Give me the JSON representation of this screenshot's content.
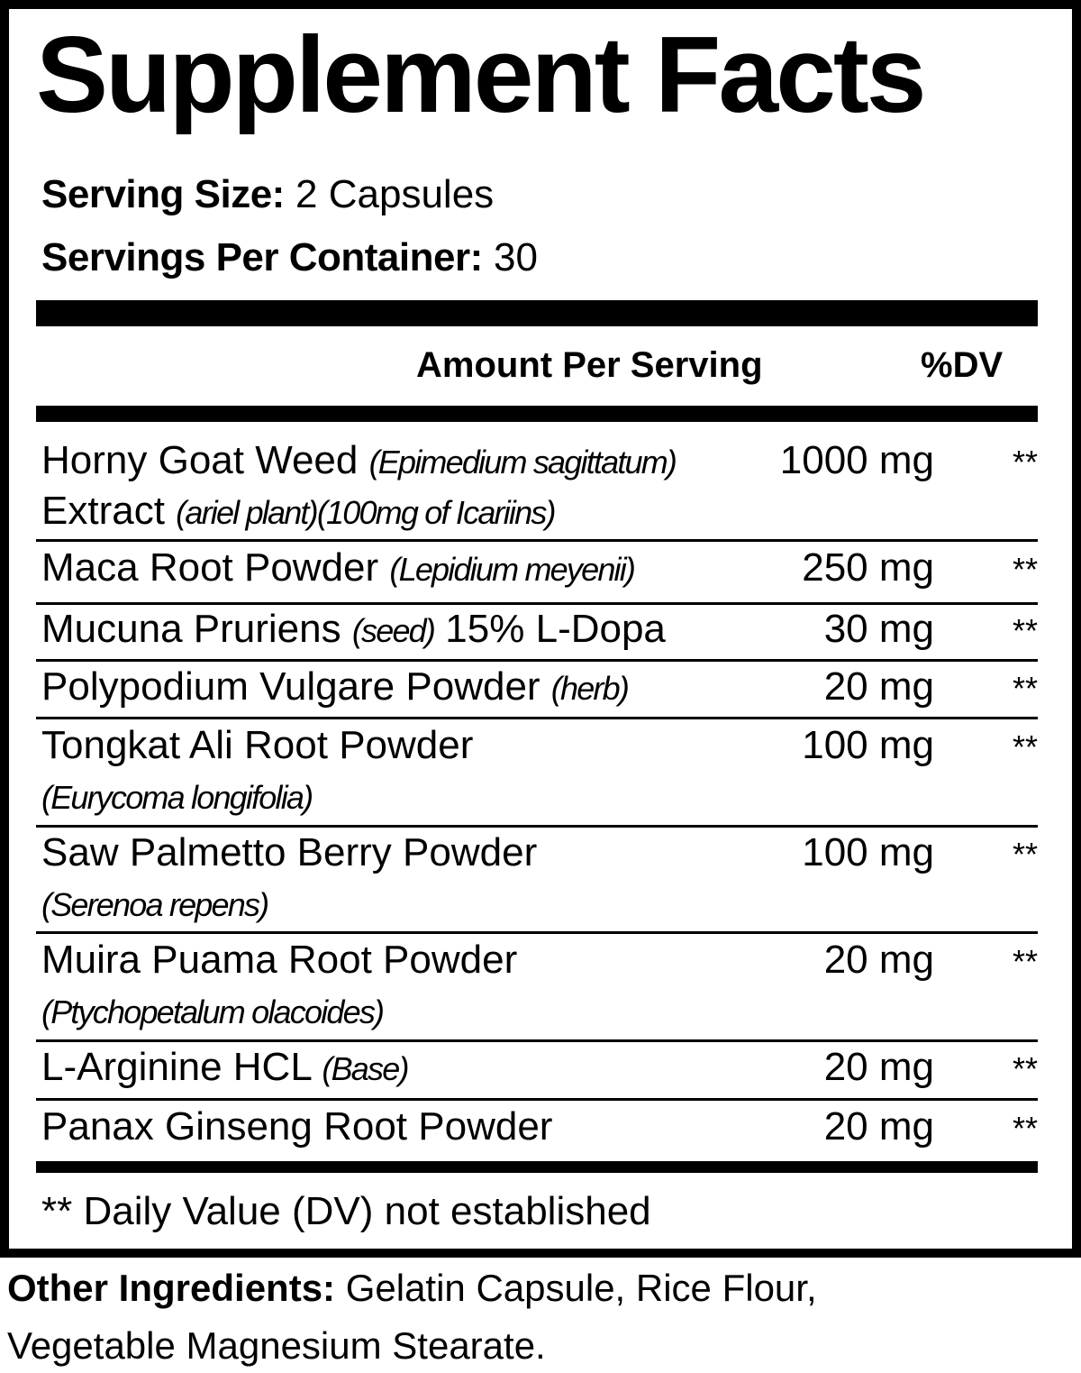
{
  "title": "Supplement Facts",
  "serving_size": {
    "label": "Serving Size:",
    "value": "2 Capsules"
  },
  "servings_per_container": {
    "label": "Servings Per Container:",
    "value": "30"
  },
  "header": {
    "amount": "Amount Per Serving",
    "dv": "%DV"
  },
  "rows": [
    {
      "lines": [
        [
          {
            "t": "Horny Goat Weed ",
            "i": false
          },
          {
            "t": "(Epimedium sagittatum)",
            "i": true
          }
        ],
        [
          {
            "t": "Extract ",
            "i": false
          },
          {
            "t": "(ariel plant)(100mg of Icariins)",
            "i": true
          }
        ]
      ],
      "amount": "1000 mg",
      "dv": "**"
    },
    {
      "lines": [
        [
          {
            "t": "Maca Root Powder ",
            "i": false
          },
          {
            "t": "(Lepidium meyenii)",
            "i": true
          }
        ]
      ],
      "amount": "250 mg",
      "dv": "**"
    },
    {
      "lines": [
        [
          {
            "t": "Mucuna Pruriens ",
            "i": false
          },
          {
            "t": "(seed)",
            "i": true
          },
          {
            "t": " 15% L-Dopa",
            "i": false
          }
        ]
      ],
      "amount": "30 mg",
      "dv": "**"
    },
    {
      "lines": [
        [
          {
            "t": "Polypodium Vulgare Powder ",
            "i": false
          },
          {
            "t": "(herb)",
            "i": true
          }
        ]
      ],
      "amount": "20 mg",
      "dv": "**"
    },
    {
      "lines": [
        [
          {
            "t": "Tongkat Ali Root Powder",
            "i": false
          }
        ],
        [
          {
            "t": "(Eurycoma longifolia)",
            "i": true
          }
        ]
      ],
      "amount": "100 mg",
      "dv": "**"
    },
    {
      "lines": [
        [
          {
            "t": "Saw Palmetto Berry Powder",
            "i": false
          }
        ],
        [
          {
            "t": "(Serenoa repens)",
            "i": true
          }
        ]
      ],
      "amount": "100 mg",
      "dv": "**"
    },
    {
      "lines": [
        [
          {
            "t": "Muira Puama Root Powder",
            "i": false
          }
        ],
        [
          {
            "t": "(Ptychopetalum olacoides)",
            "i": true
          }
        ]
      ],
      "amount": "20 mg",
      "dv": "**"
    },
    {
      "lines": [
        [
          {
            "t": "L-Arginine HCL ",
            "i": false
          },
          {
            "t": "(Base)",
            "i": true
          }
        ]
      ],
      "amount": "20 mg",
      "dv": "**"
    },
    {
      "lines": [
        [
          {
            "t": "Panax Ginseng Root Powder",
            "i": false
          }
        ]
      ],
      "amount": "20 mg",
      "dv": "**"
    }
  ],
  "footnote": "** Daily Value (DV) not established",
  "other_ingredients": {
    "label": "Other Ingredients:",
    "line1": "Gelatin Capsule, Rice Flour,",
    "line2": "Vegetable Magnesium Stearate."
  }
}
